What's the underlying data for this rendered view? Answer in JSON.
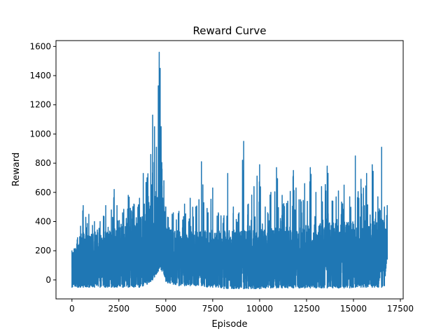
{
  "chart_data": {
    "type": "line",
    "title": "Reward Curve",
    "xlabel": "Episode",
    "ylabel": "Reward",
    "xlim": [
      -850,
      17650
    ],
    "ylim": [
      -130,
      1640
    ],
    "xticks": [
      0,
      2500,
      5000,
      7500,
      10000,
      12500,
      15000,
      17500
    ],
    "xtick_labels": [
      "0",
      "2500",
      "5000",
      "7500",
      "10000",
      "12500",
      "15000",
      "17500"
    ],
    "yticks": [
      0,
      200,
      400,
      600,
      800,
      1000,
      1200,
      1400,
      1600
    ],
    "ytick_labels": [
      "0",
      "200",
      "400",
      "600",
      "800",
      "1000",
      "1200",
      "1400",
      "1600"
    ],
    "grid": false,
    "line_color": "#1f77b4",
    "series": [
      {
        "x": [
          0,
          300,
          600,
          900,
          1200,
          1500,
          1800,
          2100,
          2250,
          2400,
          2700,
          3000,
          3300,
          3600,
          3800,
          4000,
          4200,
          4300,
          4400,
          4500,
          4600,
          4650,
          4700,
          4750,
          4800,
          4900,
          5000,
          5100,
          5400,
          5700,
          6000,
          6300,
          6600,
          6900,
          7200,
          7500,
          7800,
          8100,
          8300,
          8600,
          8900,
          9150,
          9400,
          9700,
          10000,
          10300,
          10600,
          10900,
          11200,
          11500,
          11800,
          12100,
          12400,
          12700,
          13000,
          13300,
          13600,
          13900,
          14200,
          14500,
          14800,
          15100,
          15400,
          15700,
          16000,
          16300,
          16500,
          16650,
          16800
        ],
        "max": [
          200,
          290,
          510,
          450,
          400,
          400,
          510,
          480,
          620,
          510,
          460,
          580,
          520,
          560,
          730,
          700,
          860,
          1130,
          1050,
          910,
          1330,
          1560,
          1450,
          1050,
          760,
          680,
          500,
          430,
          460,
          470,
          520,
          560,
          500,
          810,
          490,
          630,
          460,
          440,
          730,
          500,
          460,
          950,
          520,
          640,
          790,
          500,
          600,
          770,
          580,
          540,
          750,
          550,
          660,
          770,
          600,
          640,
          780,
          540,
          610,
          650,
          570,
          850,
          690,
          730,
          790,
          570,
          910,
          500,
          510
        ],
        "min": [
          -50,
          -50,
          -50,
          -50,
          -50,
          -50,
          -50,
          -50,
          -50,
          -50,
          -50,
          -50,
          -50,
          -50,
          -40,
          -30,
          -10,
          0,
          20,
          40,
          60,
          80,
          90,
          70,
          60,
          40,
          -10,
          -20,
          -30,
          -40,
          -40,
          -40,
          -40,
          -40,
          -50,
          -50,
          -50,
          -60,
          -60,
          -60,
          -60,
          -60,
          -60,
          -60,
          -60,
          -55,
          -55,
          -55,
          -55,
          -55,
          -55,
          -55,
          -55,
          -55,
          -55,
          -55,
          -55,
          -55,
          -55,
          -55,
          -55,
          -50,
          -50,
          -50,
          -50,
          -50,
          -50,
          -40,
          140
        ],
        "typical_high": [
          180,
          260,
          330,
          330,
          330,
          330,
          330,
          340,
          360,
          370,
          380,
          390,
          400,
          420,
          450,
          480,
          520,
          560,
          590,
          620,
          640,
          660,
          650,
          620,
          560,
          470,
          380,
          350,
          340,
          340,
          340,
          340,
          340,
          340,
          340,
          340,
          340,
          340,
          340,
          340,
          340,
          340,
          340,
          340,
          350,
          350,
          350,
          360,
          360,
          370,
          370,
          370,
          380,
          380,
          380,
          390,
          390,
          400,
          400,
          400,
          410,
          410,
          410,
          420,
          420,
          420,
          420,
          420,
          290
        ]
      }
    ]
  }
}
